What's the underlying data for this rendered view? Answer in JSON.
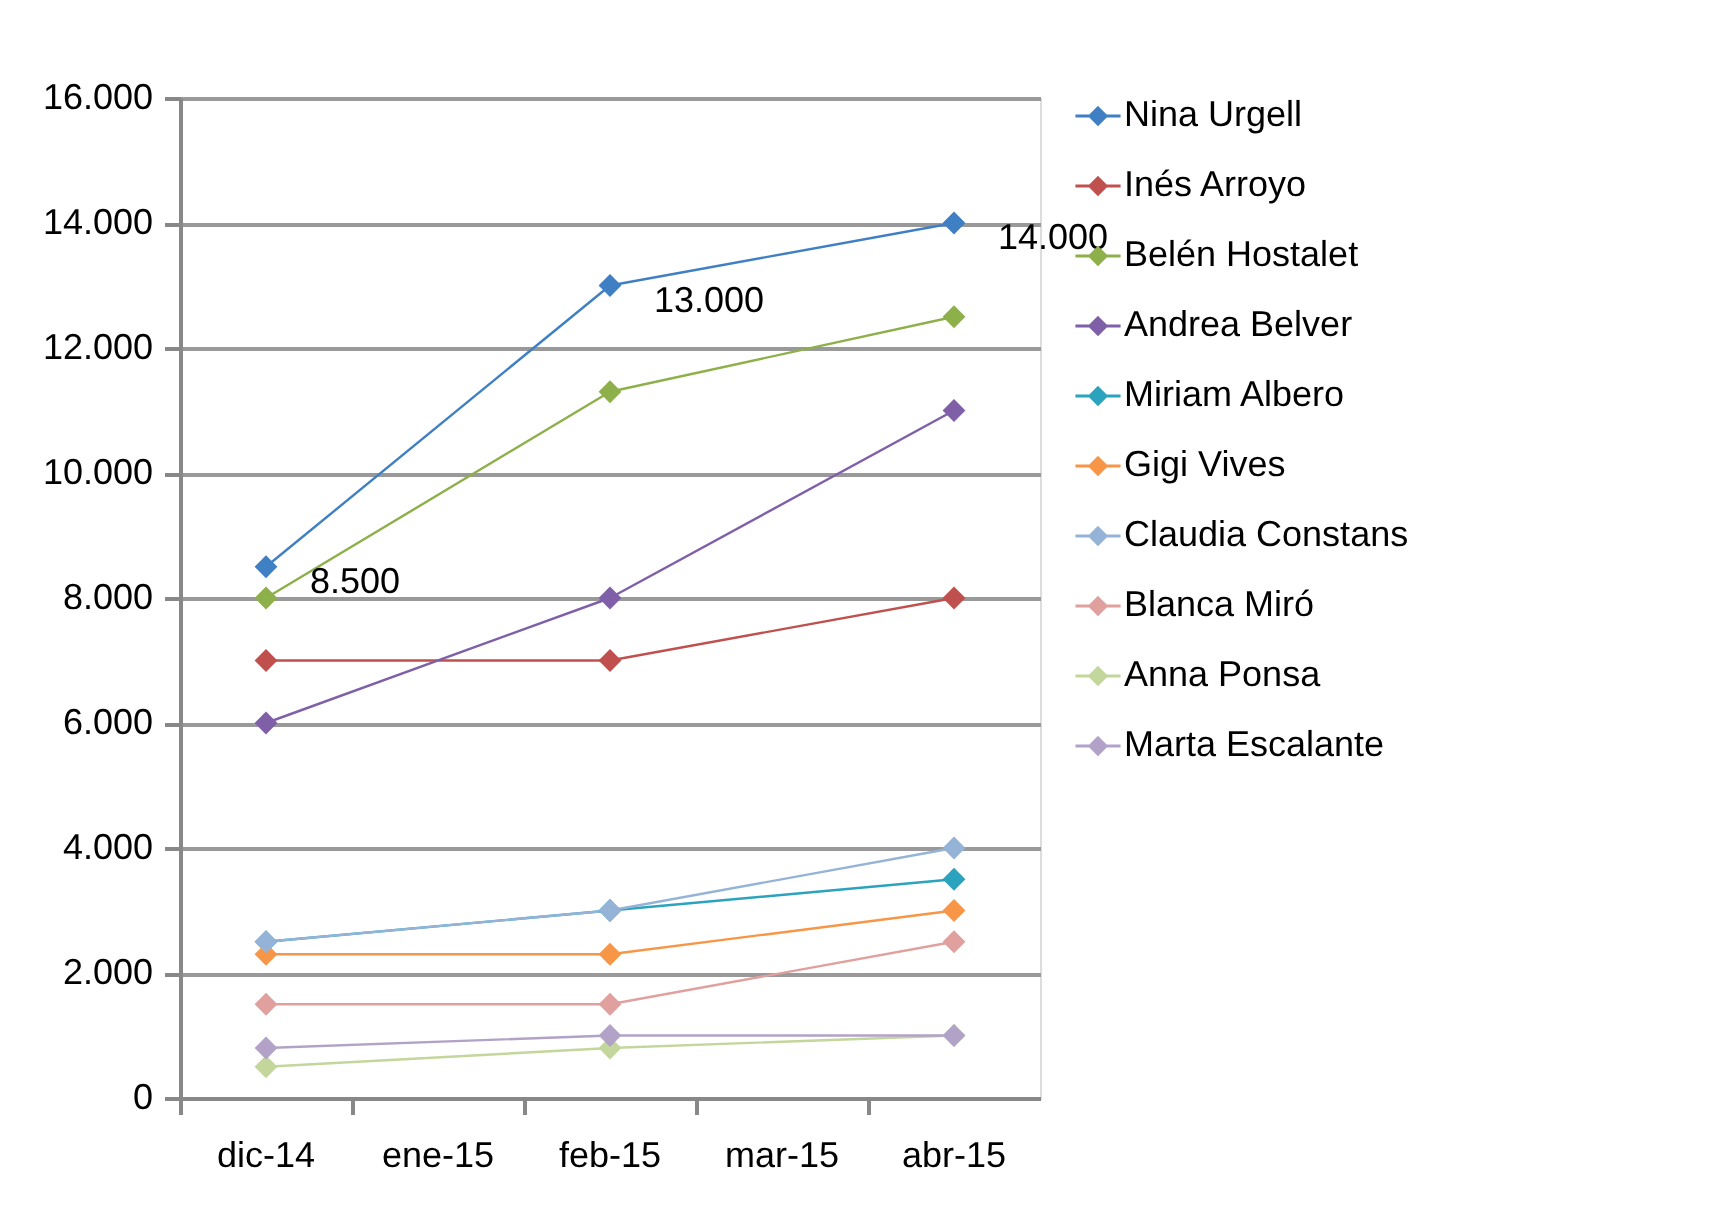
{
  "chart_data": {
    "type": "line",
    "categories": [
      "dic-14",
      "ene-15",
      "feb-15",
      "mar-15",
      "abr-15"
    ],
    "series": [
      {
        "name": "Nina Urgell",
        "color": "#3f7fc4",
        "x": [
          "dic-14",
          "feb-15",
          "abr-15"
        ],
        "values": [
          8500,
          13000,
          14000
        ],
        "value_labels": [
          "8.500",
          "13.000",
          "14.000"
        ]
      },
      {
        "name": "Inés Arroyo",
        "color": "#c0504d",
        "x": [
          "dic-14",
          "feb-15",
          "abr-15"
        ],
        "values": [
          7000,
          7000,
          8000
        ]
      },
      {
        "name": "Belén Hostalet",
        "color": "#8db04a",
        "x": [
          "dic-14",
          "feb-15",
          "abr-15"
        ],
        "values": [
          8000,
          11300,
          12500
        ]
      },
      {
        "name": "Andrea Belver",
        "color": "#7f5fa8",
        "x": [
          "dic-14",
          "feb-15",
          "abr-15"
        ],
        "values": [
          6000,
          8000,
          11000
        ]
      },
      {
        "name": "Miriam Albero",
        "color": "#2ba3bf",
        "x": [
          "dic-14",
          "feb-15",
          "abr-15"
        ],
        "values": [
          2500,
          3000,
          3500
        ]
      },
      {
        "name": "Gigi Vives",
        "color": "#f79646",
        "x": [
          "dic-14",
          "feb-15",
          "abr-15"
        ],
        "values": [
          2300,
          2300,
          3000
        ]
      },
      {
        "name": "Claudia Constans",
        "color": "#95b3d7",
        "x": [
          "dic-14",
          "feb-15",
          "abr-15"
        ],
        "values": [
          2500,
          3000,
          4000
        ]
      },
      {
        "name": "Blanca Miró",
        "color": "#e0a09e",
        "x": [
          "dic-14",
          "feb-15",
          "abr-15"
        ],
        "values": [
          1500,
          1500,
          2500
        ]
      },
      {
        "name": "Anna Ponsa",
        "color": "#c3d69b",
        "x": [
          "dic-14",
          "feb-15",
          "abr-15"
        ],
        "values": [
          500,
          800,
          1000
        ]
      },
      {
        "name": "Marta Escalante",
        "color": "#b3a2c7",
        "x": [
          "dic-14",
          "feb-15",
          "abr-15"
        ],
        "values": [
          800,
          1000,
          1000
        ]
      }
    ],
    "ylim": [
      0,
      16000
    ],
    "yticks": [
      0,
      {
        "value": 2000,
        "label": "2.000"
      },
      {
        "value": 4000,
        "label": "4.000"
      },
      {
        "value": 6000,
        "label": "6.000"
      },
      {
        "value": 8000,
        "label": "8.000"
      },
      {
        "value": 10000,
        "label": "10.000"
      },
      {
        "value": 12000,
        "label": "12.000"
      },
      {
        "value": 14000,
        "label": "14.000"
      },
      {
        "value": 16000,
        "label": "16.000"
      }
    ],
    "grid": "y",
    "legend": "right",
    "marker": "diamond",
    "line_style": "solid"
  }
}
